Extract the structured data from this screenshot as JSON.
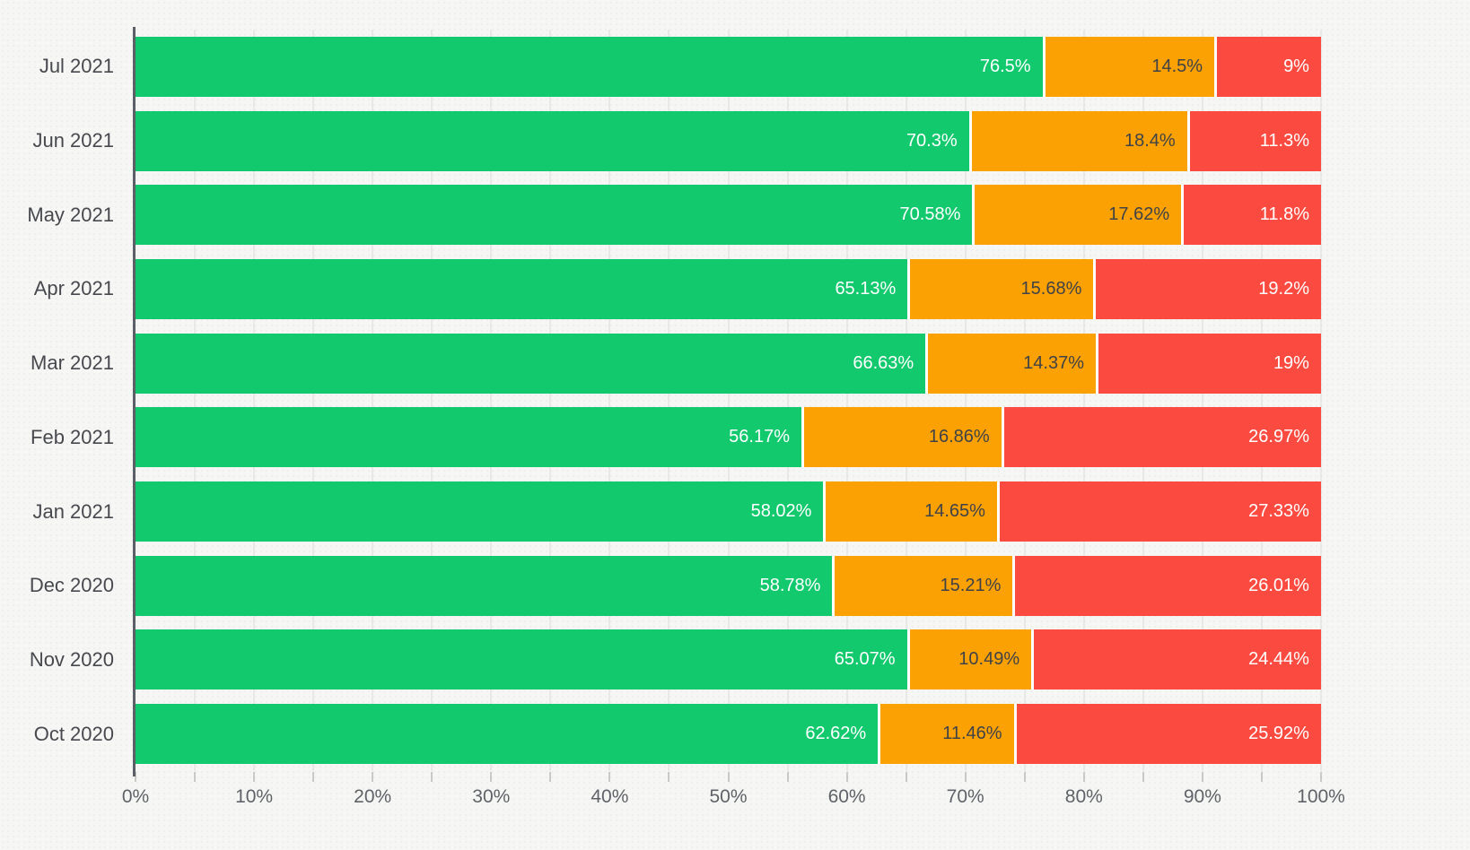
{
  "chart_data": {
    "type": "bar",
    "stacked": true,
    "orientation": "horizontal",
    "title": "",
    "legend": "none",
    "grid": true,
    "xlim": [
      0,
      100
    ],
    "x_tick_labels": [
      "0%",
      "10%",
      "20%",
      "30%",
      "40%",
      "50%",
      "60%",
      "70%",
      "80%",
      "90%",
      "100%"
    ],
    "minor_tick_step_percent": 5,
    "categories": [
      "Jul 2021",
      "Jun 2021",
      "May 2021",
      "Apr 2021",
      "Mar 2021",
      "Feb 2021",
      "Jan 2021",
      "Dec 2020",
      "Nov 2020",
      "Oct 2020"
    ],
    "series": [
      {
        "key": "green",
        "color": "#12c96e",
        "text_color": "#ffffff",
        "values": [
          76.5,
          70.3,
          70.58,
          65.13,
          66.63,
          56.17,
          58.02,
          58.78,
          65.07,
          62.62
        ],
        "labels": [
          "76.5%",
          "70.3%",
          "70.58%",
          "65.13%",
          "66.63%",
          "56.17%",
          "58.02%",
          "58.78%",
          "65.07%",
          "62.62%"
        ]
      },
      {
        "key": "orange",
        "color": "#fca103",
        "text_color": "#3f4247",
        "values": [
          14.5,
          18.4,
          17.62,
          15.68,
          14.37,
          16.86,
          14.65,
          15.21,
          10.49,
          11.46
        ],
        "labels": [
          "14.5%",
          "18.4%",
          "17.62%",
          "15.68%",
          "14.37%",
          "16.86%",
          "14.65%",
          "15.21%",
          "10.49%",
          "11.46%"
        ]
      },
      {
        "key": "red",
        "color": "#fb4b40",
        "text_color": "#ffffff",
        "values": [
          9,
          11.3,
          11.8,
          19.2,
          19,
          26.97,
          27.33,
          26.01,
          24.44,
          25.92
        ],
        "labels": [
          "9%",
          "11.3%",
          "11.8%",
          "19.2%",
          "19%",
          "26.97%",
          "27.33%",
          "26.01%",
          "24.44%",
          "25.92%"
        ]
      }
    ],
    "style_colors": {
      "background": "#f6f6f4",
      "gridline": "#e8e8e6",
      "axis_line": "#5b6066",
      "tick": "#c9c9c7",
      "x_label": "#5f6368",
      "category_label": "#47494e",
      "segment_separator": "#ffffff"
    }
  }
}
